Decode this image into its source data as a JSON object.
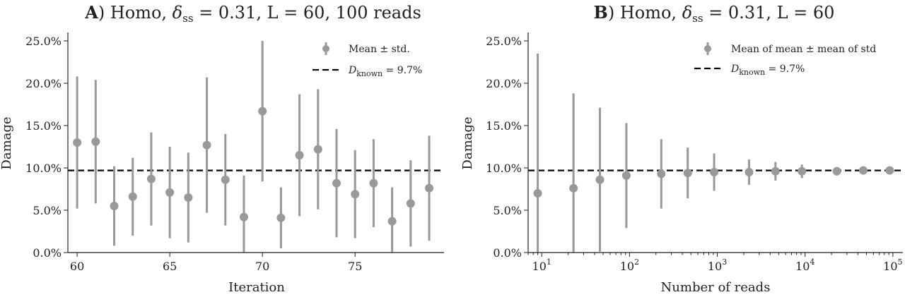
{
  "chart_data": [
    {
      "type": "scatter",
      "panel_letter": "A",
      "title_parts": {
        "prefix": ") Homo, ",
        "delta": "δ",
        "delta_sub": "ss",
        "suffix": " = 0.31, L = 60, 100 reads"
      },
      "xlabel": "Iteration",
      "ylabel": "Damage",
      "xlim": [
        59.5,
        79.8
      ],
      "ylim": [
        0,
        26
      ],
      "x_ticks": [
        60,
        65,
        70,
        75
      ],
      "x_tick_labels": [
        "60",
        "65",
        "70",
        "75"
      ],
      "y_ticks": [
        0,
        5,
        10,
        15,
        20,
        25
      ],
      "y_tick_labels": [
        "0.0%",
        "5.0%",
        "10.0%",
        "15.0%",
        "20.0%",
        "25.0%"
      ],
      "x_scale": "linear",
      "grid": false,
      "legend_position": "top-right",
      "series": [
        {
          "name": "Mean ± std.",
          "x": [
            60,
            61,
            62,
            63,
            64,
            65,
            66,
            67,
            68,
            69,
            70,
            71,
            72,
            73,
            74,
            75,
            76,
            77,
            78,
            79
          ],
          "y": [
            13.0,
            13.1,
            5.5,
            6.6,
            8.7,
            7.1,
            6.5,
            12.7,
            8.6,
            4.2,
            16.7,
            4.1,
            11.5,
            12.2,
            8.2,
            6.9,
            8.2,
            3.7,
            5.8,
            7.6
          ],
          "yerr": [
            7.8,
            7.3,
            4.7,
            4.6,
            5.5,
            5.4,
            5.3,
            8.0,
            5.4,
            4.9,
            8.3,
            3.6,
            7.2,
            7.1,
            6.4,
            5.2,
            5.2,
            4.0,
            5.1,
            6.2
          ]
        }
      ],
      "reference_line": {
        "y": 9.7,
        "label_main": "D",
        "label_sub": "known",
        "label_value": " = 9.7%"
      }
    },
    {
      "type": "scatter",
      "panel_letter": "B",
      "title_parts": {
        "prefix": ") Homo, ",
        "delta": "δ",
        "delta_sub": "ss",
        "suffix": " = 0.31, L = 60"
      },
      "xlabel": "Number of reads",
      "ylabel": "Damage",
      "xlim": [
        7,
        130000
      ],
      "ylim": [
        0,
        26
      ],
      "x_scale": "log",
      "x_ticks": [
        10,
        100,
        1000,
        10000,
        100000
      ],
      "x_tick_labels": [
        {
          "base": "10",
          "exp": "1"
        },
        {
          "base": "10",
          "exp": "2"
        },
        {
          "base": "10",
          "exp": "3"
        },
        {
          "base": "10",
          "exp": "4"
        },
        {
          "base": "10",
          "exp": "5"
        }
      ],
      "y_ticks": [
        0,
        5,
        10,
        15,
        20,
        25
      ],
      "y_tick_labels": [
        "0.0%",
        "5.0%",
        "10.0%",
        "15.0%",
        "20.0%",
        "25.0%"
      ],
      "grid": false,
      "legend_position": "top-right",
      "series": [
        {
          "name": "Mean of mean ± mean of std",
          "x": [
            9,
            23,
            46,
            92,
            230,
            460,
            920,
            2300,
            4600,
            9200,
            23000,
            46000,
            92000
          ],
          "y": [
            7.0,
            7.6,
            8.6,
            9.1,
            9.3,
            9.4,
            9.5,
            9.5,
            9.6,
            9.6,
            9.6,
            9.7,
            9.7
          ],
          "yerr": [
            16.5,
            11.2,
            8.5,
            6.2,
            4.1,
            3.0,
            2.2,
            1.5,
            1.1,
            0.8,
            0.5,
            0.35,
            0.25
          ]
        }
      ],
      "reference_line": {
        "y": 9.7,
        "label_main": "D",
        "label_sub": "known",
        "label_value": " = 9.7%"
      }
    }
  ]
}
